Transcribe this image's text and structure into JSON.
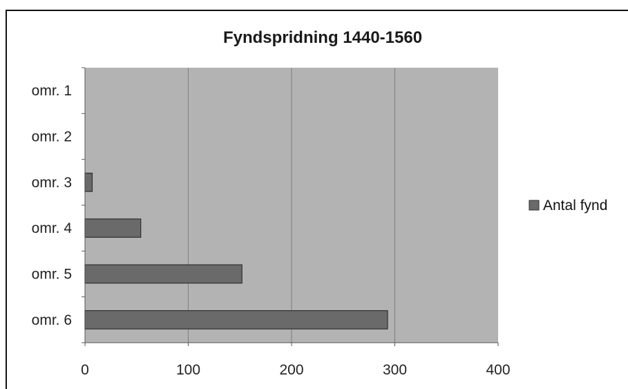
{
  "chart_data": {
    "type": "bar",
    "orientation": "horizontal",
    "title": "Fyndspridning 1440-1560",
    "xlabel": "",
    "ylabel": "",
    "categories": [
      "omr. 1",
      "omr. 2",
      "omr. 3",
      "omr. 4",
      "omr. 5",
      "omr. 6"
    ],
    "series": [
      {
        "name": "Antal fynd",
        "values": [
          0,
          0,
          7,
          54,
          152,
          293
        ]
      }
    ],
    "xlim": [
      0,
      400
    ],
    "xticks": [
      "0",
      "100",
      "200",
      "300",
      "400"
    ],
    "grid": true,
    "legend": "right",
    "colors": {
      "plot_background": "#b3b3b3",
      "bar_fill": "#6a6a6a",
      "bar_stroke": "#2e2e2e",
      "gridline": "#7e7e7e"
    }
  }
}
